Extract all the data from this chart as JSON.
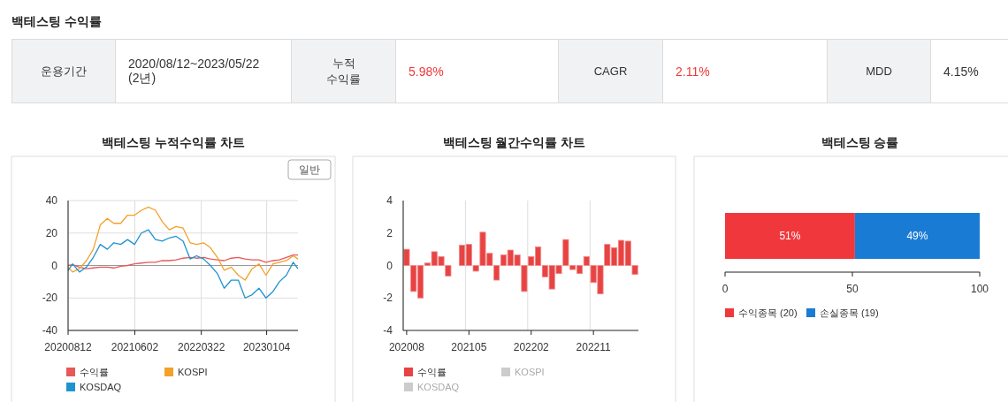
{
  "chart_data": [
    {
      "type": "other",
      "title": "백테스팅 수익률",
      "annotations": [
        "운용기간",
        "2020/08/12~2023/05/22 (2년)",
        "누적 수익률",
        "5.98%",
        "CAGR",
        "2.11%",
        "MDD",
        "4.15%"
      ]
    },
    {
      "type": "line",
      "title": "백테스팅 누적수익률 차트",
      "annotations": [
        "일반"
      ],
      "x": [
        "2020-08-12",
        "2020-09-01",
        "2020-10-01",
        "2020-11-01",
        "2020-12-01",
        "2021-01-01",
        "2021-02-01",
        "2021-03-01",
        "2021-04-01",
        "2021-05-01",
        "2021-06-01",
        "2021-07-01",
        "2021-08-01",
        "2021-09-01",
        "2021-10-01",
        "2021-11-01",
        "2021-12-01",
        "2022-01-01",
        "2022-02-01",
        "2022-03-01",
        "2022-04-01",
        "2022-05-01",
        "2022-06-01",
        "2022-07-01",
        "2022-08-01",
        "2022-09-01",
        "2022-10-01",
        "2022-11-01",
        "2022-12-01",
        "2023-01-01",
        "2023-02-01",
        "2023-03-01",
        "2023-04-01",
        "2023-05-01",
        "2023-05-22"
      ],
      "series": [
        {
          "name": "수익률",
          "color": "#e8585a",
          "values": [
            0,
            0.5,
            -1,
            -2,
            -1.5,
            -1,
            -1,
            -1.5,
            -0.5,
            0,
            1,
            1.5,
            2,
            2,
            3,
            3,
            3.5,
            4.5,
            5,
            4.5,
            5,
            4,
            3.5,
            3,
            4.5,
            5,
            4,
            3.5,
            3.5,
            2,
            3,
            3.5,
            5,
            6.5,
            6.5
          ]
        },
        {
          "name": "KOSPI",
          "color": "#f4a02a",
          "values": [
            -1,
            -4,
            -2,
            3,
            10,
            25,
            29,
            26,
            26,
            31,
            31,
            34,
            36,
            34,
            27,
            22,
            24,
            23,
            14,
            13,
            14,
            11,
            5,
            -3,
            -1,
            -6,
            -9,
            -2,
            1,
            -6,
            1,
            2,
            3,
            6,
            4
          ]
        },
        {
          "name": "KOSDAQ",
          "color": "#1f93d0",
          "values": [
            -3,
            1,
            -4,
            -1,
            5,
            13,
            10,
            14,
            13,
            16,
            13,
            20,
            22,
            16,
            15,
            17,
            18,
            15,
            4,
            6,
            4,
            0,
            -5,
            -14,
            -9,
            -9,
            -20,
            -18,
            -14,
            -20,
            -16,
            -10,
            -6,
            2,
            -2
          ]
        }
      ],
      "xlim": [
        "2020-08-12",
        "2023-05-22"
      ],
      "xticks": [
        {
          "value": "2020-08-12",
          "label": "20200812"
        },
        {
          "value": "2021-06-02",
          "label": "20210602"
        },
        {
          "value": "2022-03-22",
          "label": "20220322"
        },
        {
          "value": "2023-01-04",
          "label": "20230104"
        }
      ],
      "ylim": [
        -40,
        40
      ],
      "yticks": [
        -40,
        -20,
        0,
        20,
        40
      ],
      "grid": true,
      "legend": "bottom",
      "marker": "none",
      "line_style": "solid",
      "ref_lines": [
        {
          "axis": "y",
          "value": 0,
          "color": "#999999"
        }
      ]
    },
    {
      "type": "bar",
      "title": "백테스팅 월간수익률 차트",
      "categories": [
        "202008",
        null,
        null,
        null,
        null,
        null,
        null,
        null,
        null,
        "202105",
        null,
        null,
        null,
        null,
        null,
        null,
        null,
        null,
        "202202",
        null,
        null,
        null,
        null,
        null,
        null,
        null,
        null,
        "202211",
        null,
        null,
        null,
        null,
        null,
        null
      ],
      "series": [
        {
          "name": "수익률",
          "color": "#e84343",
          "values": [
            1.0,
            -1.6,
            -2.0,
            0.15,
            0.85,
            0.55,
            -0.65,
            0.0,
            1.25,
            1.3,
            -0.35,
            2.05,
            0.75,
            -0.9,
            0.65,
            0.95,
            0.65,
            -1.6,
            0.55,
            1.15,
            -0.7,
            -1.45,
            -0.5,
            1.6,
            -0.25,
            -0.5,
            0.55,
            -1.05,
            -1.75,
            1.3,
            1.1,
            1.55,
            1.5,
            -0.55
          ]
        },
        {
          "name": "KOSPI",
          "color": "#cccccc",
          "values": [
            null,
            null,
            null,
            null,
            null,
            null,
            null,
            null,
            null,
            null,
            null,
            null,
            null,
            null,
            null,
            null,
            null,
            null,
            null,
            null,
            null,
            null,
            null,
            null,
            null,
            null,
            null,
            null,
            null,
            null,
            null,
            null,
            null,
            null
          ]
        },
        {
          "name": "KOSDAQ",
          "color": "#cccccc",
          "values": [
            null,
            null,
            null,
            null,
            null,
            null,
            null,
            null,
            null,
            null,
            null,
            null,
            null,
            null,
            null,
            null,
            null,
            null,
            null,
            null,
            null,
            null,
            null,
            null,
            null,
            null,
            null,
            null,
            null,
            null,
            null,
            null,
            null,
            null
          ]
        }
      ],
      "ylim": [
        -4,
        4
      ],
      "yticks": [
        -4,
        -2,
        0,
        2,
        4
      ],
      "grid": "x",
      "legend": "bottom"
    },
    {
      "type": "bar",
      "title": "백테스팅 승률",
      "orientation": "horizontal",
      "stacked": true,
      "categories": [
        null
      ],
      "series": [
        {
          "name": "수익종목 (20)",
          "color": "#f0383c",
          "values": [
            51
          ],
          "value_labels": [
            "51%"
          ]
        },
        {
          "name": "손실종목 (19)",
          "color": "#1a7bd5",
          "values": [
            49
          ],
          "value_labels": [
            "49%"
          ]
        }
      ],
      "xlim": [
        0,
        100
      ],
      "xticks": [
        0,
        50,
        100
      ],
      "legend": "bottom"
    }
  ]
}
